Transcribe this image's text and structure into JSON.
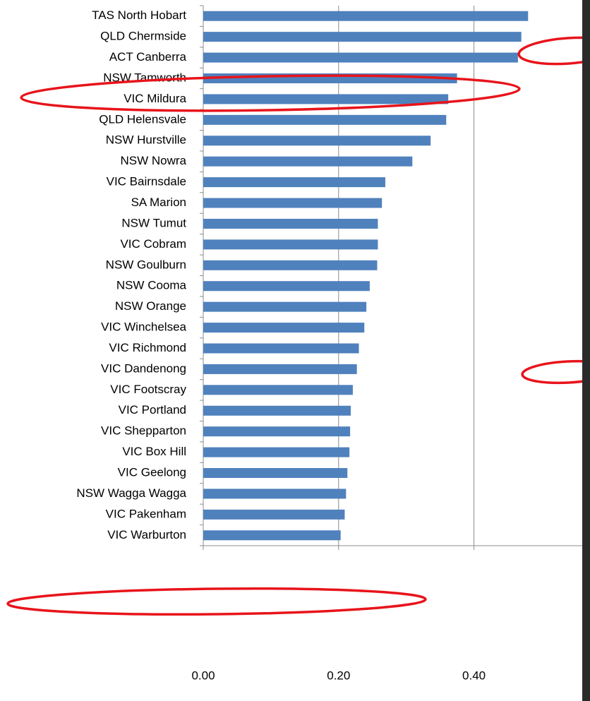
{
  "chart_data": {
    "type": "bar",
    "orientation": "horizontal",
    "color": "#4f81bd",
    "categories": [
      "TAS North Hobart",
      "QLD Chermside",
      "ACT Canberra",
      "NSW Tamworth",
      "VIC Mildura",
      "QLD Helensvale",
      "NSW Hurstville",
      "NSW Nowra",
      "VIC Bairnsdale",
      "SA Marion",
      "NSW Tumut",
      "VIC Cobram",
      "NSW Goulburn",
      "NSW Cooma",
      "NSW Orange",
      "VIC Winchelsea",
      "VIC Richmond",
      "VIC Dandenong",
      "VIC Footscray",
      "VIC Portland",
      "VIC Shepparton",
      "VIC Box Hill",
      "VIC Geelong",
      "NSW Wagga Wagga",
      "VIC Pakenham",
      "VIC Warburton"
    ],
    "values": [
      0.48,
      0.47,
      0.465,
      0.375,
      0.362,
      0.359,
      0.336,
      0.309,
      0.269,
      0.264,
      0.258,
      0.258,
      0.257,
      0.246,
      0.241,
      0.238,
      0.23,
      0.227,
      0.221,
      0.218,
      0.217,
      0.216,
      0.213,
      0.211,
      0.209,
      0.203
    ],
    "xlim": [
      0,
      0.56
    ],
    "xticks": [
      {
        "value": 0,
        "label": "0.00"
      },
      {
        "value": 0.2,
        "label": "0.20"
      },
      {
        "value": 0.4,
        "label": "0.40"
      }
    ],
    "grid": true
  }
}
